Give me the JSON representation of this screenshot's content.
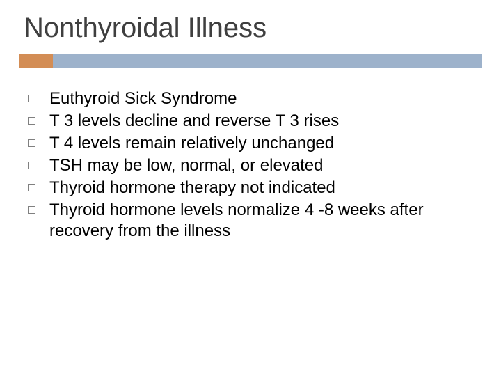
{
  "slide": {
    "title": "Nonthyroidal Illness",
    "title_color": "#3f3f3f",
    "title_fontsize": 40,
    "divider": {
      "accent_color": "#d38d55",
      "main_color": "#9db2cb",
      "height": 20,
      "accent_width": 48
    },
    "bullets": [
      {
        "text": "Euthyroid Sick Syndrome"
      },
      {
        "text": "T 3 levels decline and reverse T 3 rises"
      },
      {
        "text": "T 4 levels remain relatively unchanged"
      },
      {
        "text": "TSH may be low, normal, or elevated"
      },
      {
        "text": "Thyroid hormone therapy not indicated"
      },
      {
        "text": "Thyroid hormone levels normalize 4 -8 weeks after recovery from the illness"
      }
    ],
    "bullet_fontsize": 24,
    "bullet_marker_color": "#808080",
    "background_color": "#ffffff"
  }
}
